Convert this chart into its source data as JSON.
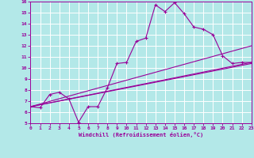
{
  "xlabel": "Windchill (Refroidissement éolien,°C)",
  "bg_color": "#b3e8e8",
  "line_color": "#990099",
  "grid_color": "#ffffff",
  "xlim": [
    0,
    23
  ],
  "ylim": [
    5,
    16
  ],
  "xticks": [
    0,
    1,
    2,
    3,
    4,
    5,
    6,
    7,
    8,
    9,
    10,
    11,
    12,
    13,
    14,
    15,
    16,
    17,
    18,
    19,
    20,
    21,
    22,
    23
  ],
  "yticks": [
    5,
    6,
    7,
    8,
    9,
    10,
    11,
    12,
    13,
    14,
    15,
    16
  ],
  "series1_x": [
    0,
    1,
    2,
    3,
    4,
    5,
    6,
    7,
    8,
    9,
    10,
    11,
    12,
    13,
    14,
    15,
    16,
    17,
    18,
    19,
    20,
    21,
    22,
    23
  ],
  "series1_y": [
    6.5,
    6.4,
    7.6,
    7.8,
    7.2,
    5.1,
    6.5,
    6.5,
    8.2,
    10.4,
    10.5,
    12.4,
    12.7,
    15.7,
    15.1,
    15.9,
    14.9,
    13.7,
    13.5,
    13.0,
    11.1,
    10.4,
    10.5,
    10.5
  ],
  "series2_x": [
    0,
    23
  ],
  "series2_y": [
    6.5,
    10.4
  ],
  "series3_x": [
    0,
    23
  ],
  "series3_y": [
    6.5,
    10.5
  ],
  "series4_x": [
    0,
    23
  ],
  "series4_y": [
    6.5,
    12.0
  ]
}
